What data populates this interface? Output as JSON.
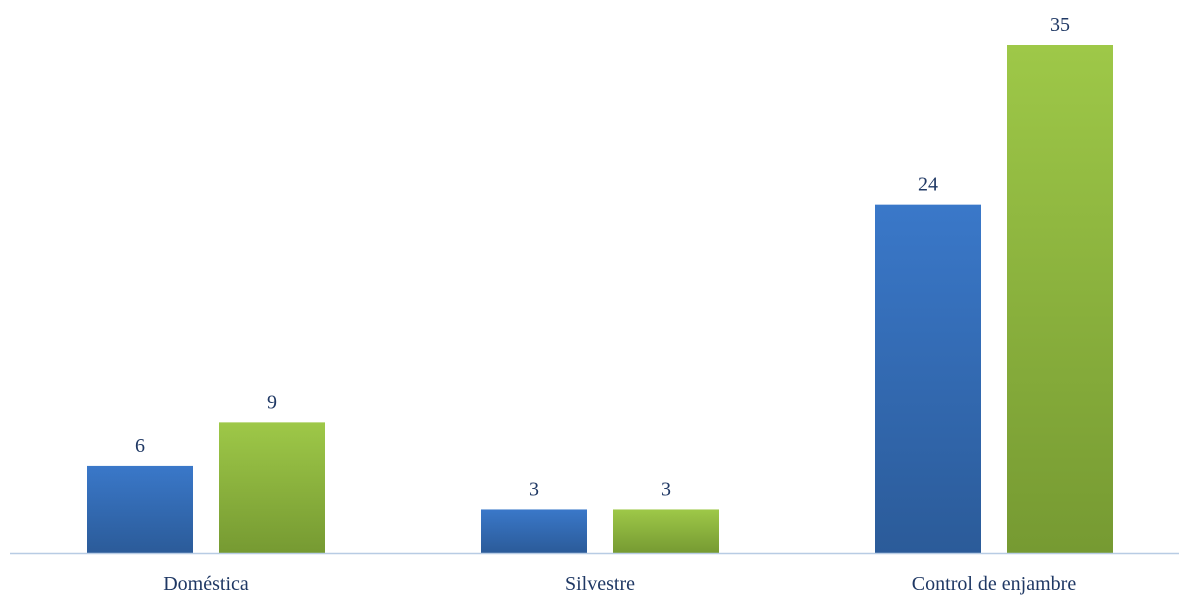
{
  "chart_data": {
    "type": "bar",
    "title": "",
    "xlabel": "",
    "ylabel": "",
    "categories": [
      "Doméstica",
      "Silvestre",
      "Control de enjambre"
    ],
    "series": [
      {
        "values": [
          6,
          3,
          24
        ],
        "color": "#3a78c9",
        "color_dark": "#2b5b99"
      },
      {
        "values": [
          9,
          3,
          35
        ],
        "color": "#9ec848",
        "color_dark": "#769a32"
      }
    ],
    "ylim": [
      0,
      35
    ],
    "grid": false,
    "legend": "none",
    "axis_color": "#b8cce4",
    "label_color": "#1f3864"
  }
}
